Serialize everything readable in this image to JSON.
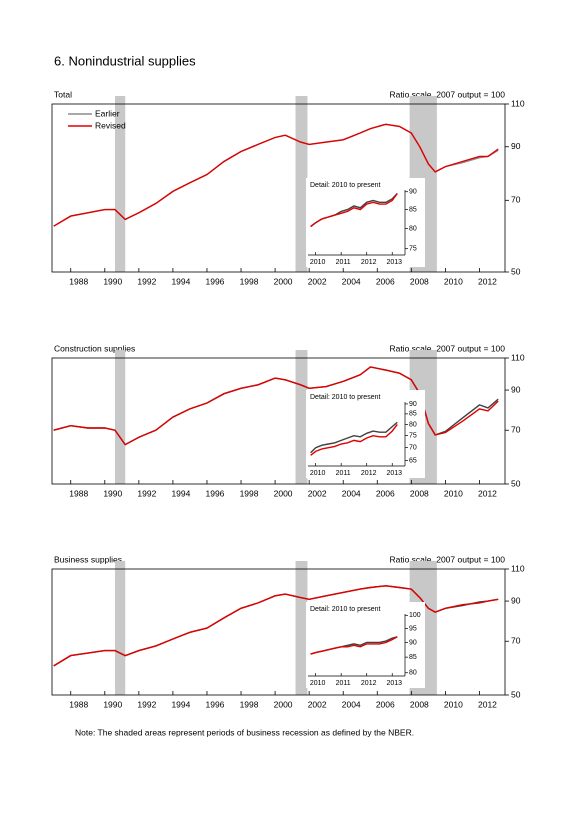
{
  "title": "6. Nonindustrial supplies",
  "note": "Note: The shaded areas represent periods of business recession as defined by the NBER.",
  "chart_data": [
    {
      "type": "line",
      "title": "Total",
      "scale_label": "Ratio scale, 2007 output = 100",
      "log_scale": true,
      "xlim": [
        1986.9,
        2013.5
      ],
      "xticks": [
        1988,
        1990,
        1992,
        1994,
        1996,
        1998,
        2000,
        2002,
        2004,
        2006,
        2008,
        2010,
        2012
      ],
      "ylim": [
        50,
        110
      ],
      "yticks": [
        50,
        70,
        90,
        110
      ],
      "recessions": [
        [
          1990.6,
          1991.2
        ],
        [
          2001.2,
          2001.9
        ],
        [
          2007.9,
          2009.5
        ]
      ],
      "x": [
        1987,
        1988,
        1989,
        1990,
        1990.6,
        1991.2,
        1992,
        1993,
        1994,
        1995,
        1996,
        1997,
        1998,
        1999,
        2000,
        2000.6,
        2001.5,
        2002,
        2003,
        2004,
        2005,
        2005.6,
        2006.5,
        2007.3,
        2008,
        2008.5,
        2009,
        2009.4,
        2010,
        2011,
        2012,
        2012.5,
        2013.1
      ],
      "series": [
        {
          "name": "Earlier",
          "color": "#8c8c8c",
          "values": [
            62,
            65,
            66,
            67,
            67,
            64,
            66,
            69,
            73,
            76,
            79,
            84,
            88,
            91,
            94,
            95,
            92,
            91,
            92,
            93,
            96,
            98,
            100,
            99,
            96,
            90,
            83,
            80,
            82,
            83.5,
            85.5,
            86,
            88.5
          ]
        },
        {
          "name": "Revised",
          "color": "#e00000",
          "values": [
            62,
            65,
            66,
            67,
            67,
            64,
            66,
            69,
            73,
            76,
            79,
            84,
            88,
            91,
            94,
            95,
            92,
            91,
            92,
            93,
            96,
            98,
            100,
            99,
            96,
            90,
            83,
            80,
            82,
            84,
            86,
            86,
            89
          ]
        }
      ],
      "inset": {
        "title": "Detail: 2010 to present",
        "xlim": [
          2009.7,
          2013.5
        ],
        "xticks": [
          2010,
          2011,
          2012,
          2013
        ],
        "ylim": [
          73.5,
          90.5
        ],
        "yticks": [
          75,
          80,
          85,
          90
        ],
        "x": [
          2009.8,
          2010,
          2010.25,
          2010.5,
          2010.75,
          2011,
          2011.25,
          2011.5,
          2011.75,
          2012,
          2012.25,
          2012.5,
          2012.75,
          2013,
          2013.2
        ],
        "series": [
          {
            "color": "#404040",
            "values": [
              80.5,
              81.5,
              82.5,
              83,
              83.5,
              84.5,
              85,
              86,
              85.5,
              87,
              87.5,
              87,
              87,
              88,
              89.5
            ]
          },
          {
            "color": "#e00000",
            "values": [
              80.5,
              81.5,
              82.5,
              83,
              83.5,
              84,
              84.5,
              85.5,
              85,
              86.5,
              87,
              86.5,
              86.5,
              87.5,
              89.5
            ]
          }
        ]
      }
    },
    {
      "type": "line",
      "title": "Construction supplies",
      "scale_label": "Ratio scale, 2007 output = 100",
      "log_scale": true,
      "xlim": [
        1986.9,
        2013.5
      ],
      "xticks": [
        1988,
        1990,
        1992,
        1994,
        1996,
        1998,
        2000,
        2002,
        2004,
        2006,
        2008,
        2010,
        2012
      ],
      "ylim": [
        50,
        110
      ],
      "yticks": [
        50,
        70,
        90,
        110
      ],
      "recessions": [
        [
          1990.6,
          1991.2
        ],
        [
          2001.2,
          2001.9
        ],
        [
          2007.9,
          2009.5
        ]
      ],
      "x": [
        1987,
        1988,
        1989,
        1990,
        1990.6,
        1991.2,
        1992,
        1993,
        1994,
        1995,
        1996,
        1997,
        1998,
        1999,
        2000,
        2000.6,
        2001.5,
        2002,
        2003,
        2004,
        2005,
        2005.6,
        2006.5,
        2007.3,
        2008,
        2008.5,
        2009,
        2009.4,
        2010,
        2011,
        2012,
        2012.5,
        2013.1
      ],
      "series": [
        {
          "color": "#404040",
          "values": [
            70,
            72,
            71,
            71,
            70,
            64,
            67,
            70,
            76,
            80,
            83,
            88,
            91,
            93,
            97,
            96,
            93,
            91,
            92,
            95,
            99,
            104,
            102,
            100,
            96,
            88,
            73,
            68,
            69.5,
            75.5,
            82,
            80.5,
            85
          ]
        },
        {
          "color": "#e00000",
          "values": [
            70,
            72,
            71,
            71,
            70,
            64,
            67,
            70,
            76,
            80,
            83,
            88,
            91,
            93,
            97,
            96,
            93,
            91,
            92,
            95,
            99,
            104,
            102,
            100,
            96,
            88,
            73,
            68,
            69,
            74,
            80,
            79,
            84
          ]
        }
      ],
      "inset": {
        "title": "Detail: 2010 to present",
        "xlim": [
          2009.7,
          2013.5
        ],
        "xticks": [
          2010,
          2011,
          2012,
          2013
        ],
        "ylim": [
          63,
          91
        ],
        "yticks": [
          65,
          70,
          75,
          80,
          85,
          90
        ],
        "x": [
          2009.8,
          2010,
          2010.25,
          2010.5,
          2010.75,
          2011,
          2011.25,
          2011.5,
          2011.75,
          2012,
          2012.25,
          2012.5,
          2012.75,
          2013,
          2013.2
        ],
        "series": [
          {
            "color": "#404040",
            "values": [
              68,
              70,
              71,
              71.5,
              72,
              73,
              74,
              75,
              74.5,
              76,
              77,
              76.5,
              76.5,
              79,
              81
            ]
          },
          {
            "color": "#e00000",
            "values": [
              67,
              68.5,
              69.5,
              70,
              70.5,
              71.5,
              72,
              73,
              72.5,
              74,
              75,
              74.5,
              74.5,
              77,
              80
            ]
          }
        ]
      }
    },
    {
      "type": "line",
      "title": "Business supplies",
      "scale_label": "Ratio scale, 2007 output = 100",
      "log_scale": true,
      "xlim": [
        1986.9,
        2013.5
      ],
      "xticks": [
        1988,
        1990,
        1992,
        1994,
        1996,
        1998,
        2000,
        2002,
        2004,
        2006,
        2008,
        2010,
        2012
      ],
      "ylim": [
        50,
        110
      ],
      "yticks": [
        50,
        70,
        90,
        110
      ],
      "recessions": [
        [
          1990.6,
          1991.2
        ],
        [
          2001.2,
          2001.9
        ],
        [
          2007.9,
          2009.5
        ]
      ],
      "x": [
        1987,
        1988,
        1989,
        1990,
        1990.6,
        1991.2,
        1992,
        1993,
        1994,
        1995,
        1996,
        1997,
        1998,
        1999,
        2000,
        2000.6,
        2001.5,
        2002,
        2003,
        2004,
        2005,
        2005.6,
        2006.5,
        2007.3,
        2008,
        2008.5,
        2009,
        2009.4,
        2010,
        2011,
        2012,
        2012.5,
        2013.1
      ],
      "series": [
        {
          "color": "#404040",
          "values": [
            60,
            64,
            65,
            66,
            66,
            64,
            66,
            68,
            71,
            74,
            76,
            81,
            86,
            89,
            93,
            94,
            92,
            91,
            93,
            95,
            97,
            98,
            99,
            98,
            97,
            92,
            86,
            84,
            86,
            87.5,
            89.5,
            90,
            91
          ]
        },
        {
          "color": "#e00000",
          "values": [
            60,
            64,
            65,
            66,
            66,
            64,
            66,
            68,
            71,
            74,
            76,
            81,
            86,
            89,
            93,
            94,
            92,
            91,
            93,
            95,
            97,
            98,
            99,
            98,
            97,
            92,
            86,
            84,
            86,
            88,
            89,
            90,
            91
          ]
        }
      ],
      "inset": {
        "title": "Detail: 2010 to present",
        "xlim": [
          2009.7,
          2013.5
        ],
        "xticks": [
          2010,
          2011,
          2012,
          2013
        ],
        "ylim": [
          79,
          100.5
        ],
        "yticks": [
          80,
          85,
          90,
          95,
          100
        ],
        "x": [
          2009.8,
          2010,
          2010.25,
          2010.5,
          2010.75,
          2011,
          2011.25,
          2011.5,
          2011.75,
          2012,
          2012.25,
          2012.5,
          2012.75,
          2013,
          2013.2
        ],
        "series": [
          {
            "color": "#404040",
            "values": [
              86,
              86.5,
              87,
              87.5,
              88,
              88.5,
              89,
              89.5,
              89,
              90,
              90,
              90,
              90.5,
              91.5,
              92
            ]
          },
          {
            "color": "#e00000",
            "values": [
              86,
              86.5,
              87,
              87.5,
              88,
              88.5,
              88.5,
              89,
              88.5,
              89.5,
              89.5,
              89.5,
              90,
              91,
              92
            ]
          }
        ]
      }
    }
  ]
}
